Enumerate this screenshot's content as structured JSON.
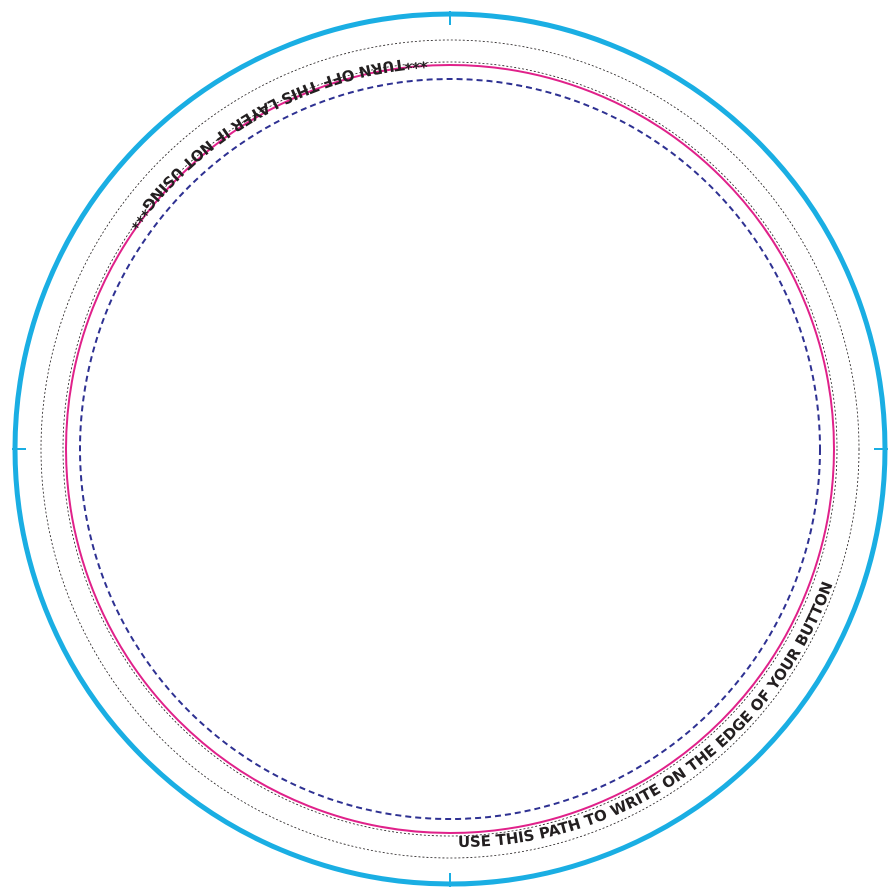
{
  "template": {
    "top_text": "***TURN OFF THIS LAYER IF NOT USING***",
    "bottom_text": "USE THIS PATH TO WRITE ON THE EDGE OF YOUR BUTTON",
    "colors": {
      "outer_ring": "#1aaee3",
      "dotted_guides": "#231f20",
      "cut_line": "#e0218a",
      "safe_line": "#2e3192",
      "text": "#231f20"
    }
  }
}
